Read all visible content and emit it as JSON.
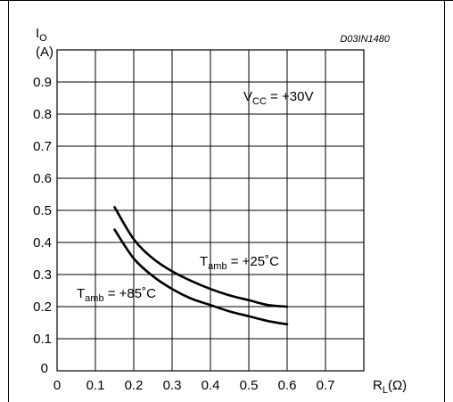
{
  "chart_data": {
    "type": "line",
    "code": "D03IN1480",
    "ylabel": {
      "main": "I",
      "sub": "O",
      "unit": "(A)"
    },
    "xlabel": {
      "main": "R",
      "sub": "L",
      "unit": "(Ω)"
    },
    "xlim": [
      0,
      0.8
    ],
    "ylim": [
      0,
      1.0
    ],
    "x_ticks": [
      "0",
      "0.1",
      "0.2",
      "0.3",
      "0.4",
      "0.5",
      "0.6",
      "0.7"
    ],
    "y_ticks": [
      "0",
      "0.1",
      "0.2",
      "0.3",
      "0.4",
      "0.5",
      "0.6",
      "0.7",
      "0.8",
      "0.9"
    ],
    "grid": true,
    "annotation": {
      "main": "V",
      "sub": "CC",
      "rest": " = +30V"
    },
    "series": [
      {
        "label": {
          "main": "T",
          "sub": "amb",
          "rest": " = +25˚C"
        },
        "x": [
          0.15,
          0.2,
          0.25,
          0.3,
          0.35,
          0.4,
          0.45,
          0.5,
          0.55,
          0.6
        ],
        "y": [
          0.51,
          0.41,
          0.35,
          0.31,
          0.28,
          0.255,
          0.235,
          0.22,
          0.205,
          0.2
        ]
      },
      {
        "label": {
          "main": "T",
          "sub": "amb",
          "rest": " = +85˚C"
        },
        "x": [
          0.15,
          0.2,
          0.25,
          0.3,
          0.35,
          0.4,
          0.45,
          0.5,
          0.55,
          0.6
        ],
        "y": [
          0.44,
          0.35,
          0.295,
          0.255,
          0.225,
          0.205,
          0.185,
          0.17,
          0.155,
          0.145
        ]
      }
    ]
  }
}
